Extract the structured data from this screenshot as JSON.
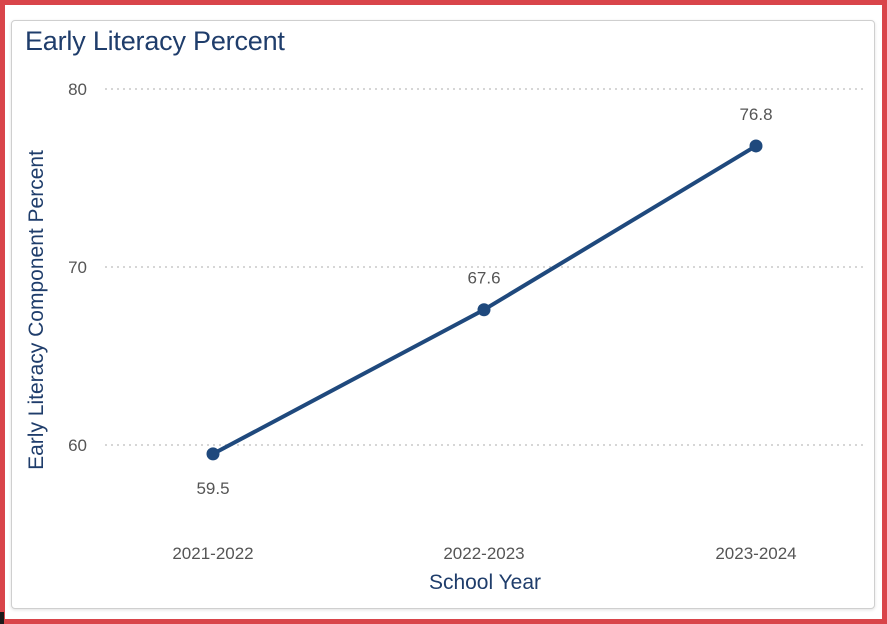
{
  "chart_data": {
    "type": "line",
    "title": "Early Literacy Percent",
    "xlabel": "School Year",
    "ylabel": "Early Literacy Component Percent",
    "categories": [
      "2021-2022",
      "2022-2023",
      "2023-2024"
    ],
    "series": [
      {
        "values": [
          59.5,
          67.6,
          76.8
        ]
      }
    ],
    "data_labels": [
      "59.5",
      "67.6",
      "76.8"
    ],
    "y_ticks": [
      60,
      70,
      80
    ],
    "ylim": [
      54,
      80
    ],
    "grid": true,
    "grid_style": "dotted horizontal",
    "legend": "none",
    "colors": {
      "line": "#1f497d",
      "grid": "#c8c8c8",
      "frame_border": "#d9454a"
    }
  }
}
